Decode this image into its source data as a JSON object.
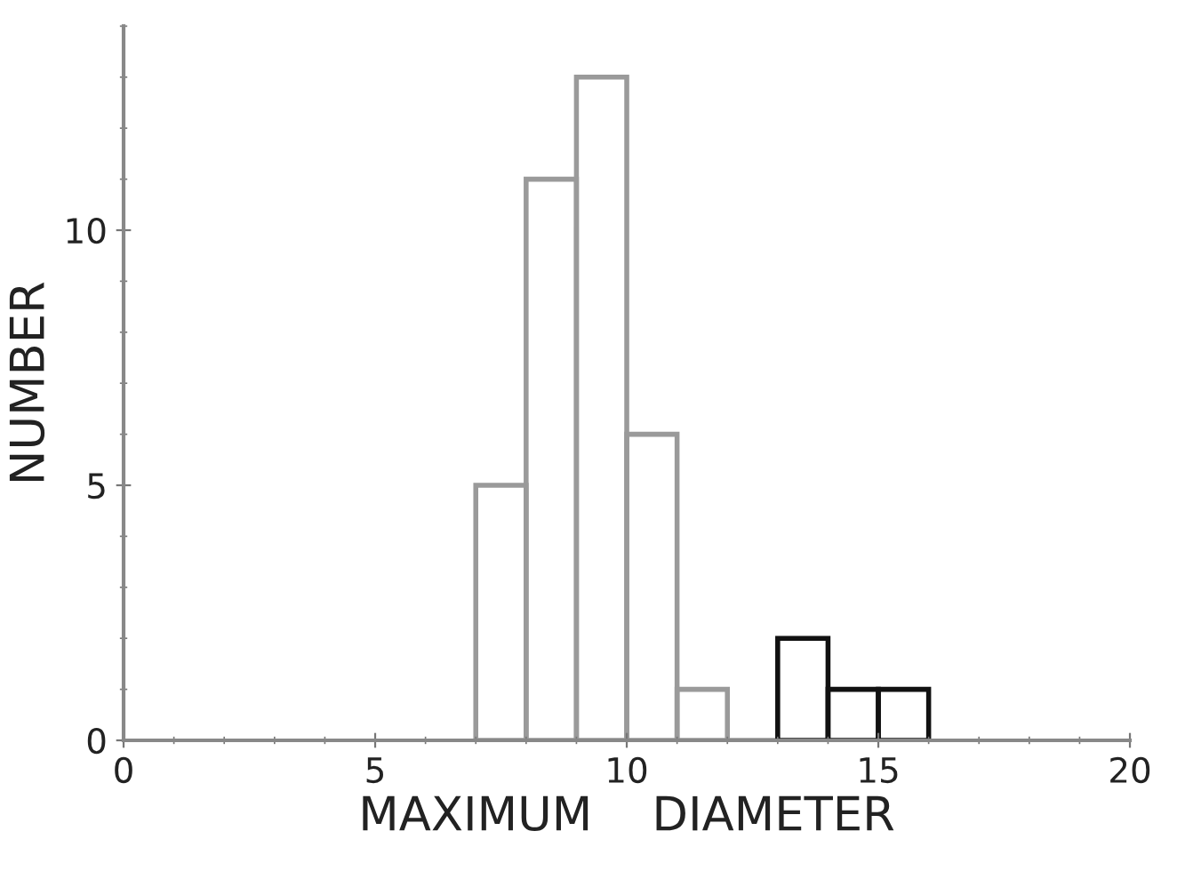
{
  "chart_data": {
    "type": "histogram",
    "xlabel": "MAXIMUM    DIAMETER",
    "ylabel": "NUMBER",
    "bins": [
      7,
      8,
      9,
      10,
      11,
      12,
      13,
      14,
      15,
      16
    ],
    "values": [
      5,
      11,
      13,
      6,
      1,
      0,
      2,
      1,
      1
    ],
    "colors": [
      "#9a9a9a",
      "#9a9a9a",
      "#9a9a9a",
      "#9a9a9a",
      "#9a9a9a",
      "#9a9a9a",
      "#111111",
      "#111111",
      "#111111"
    ],
    "xlim": [
      0,
      20
    ],
    "xticks": [
      0,
      5,
      10,
      15,
      20
    ],
    "ylim": [
      0,
      14
    ],
    "yticks": [
      0,
      5,
      10
    ],
    "grid": false
  }
}
